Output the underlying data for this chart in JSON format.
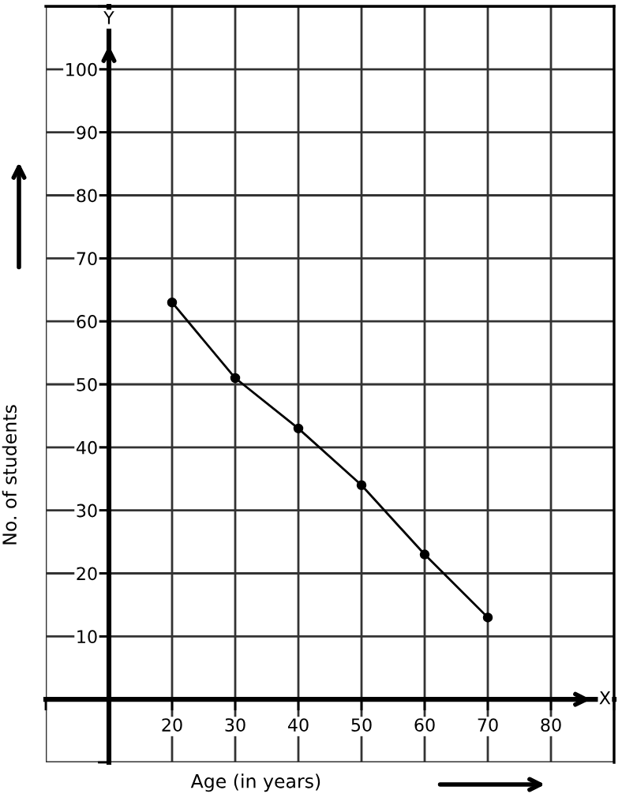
{
  "chart_data": {
    "type": "line",
    "xlabel": "Age (in years)",
    "ylabel": "No. of students",
    "x": [
      20,
      30,
      40,
      50,
      60,
      70
    ],
    "series": [
      {
        "color": "#000000",
        "values": [
          63,
          51,
          43,
          34,
          23,
          13
        ]
      }
    ],
    "xlim": [
      0,
      90
    ],
    "ylim": [
      -10,
      110
    ],
    "xticks": [
      {
        "value": 0,
        "label": null
      },
      {
        "value": 10,
        "label": null
      },
      20,
      30,
      40,
      50,
      60,
      70,
      80,
      {
        "value": 90,
        "label": null
      }
    ],
    "yticks": [
      {
        "value": -10,
        "label": null
      },
      {
        "value": 0,
        "label": null
      },
      10,
      20,
      30,
      40,
      50,
      60,
      70,
      80,
      90,
      100,
      {
        "value": 110,
        "label": null
      }
    ],
    "grid": true,
    "marker": "circle",
    "line_style": "solid",
    "legend": false,
    "annotations": [
      "Y",
      "X"
    ]
  }
}
